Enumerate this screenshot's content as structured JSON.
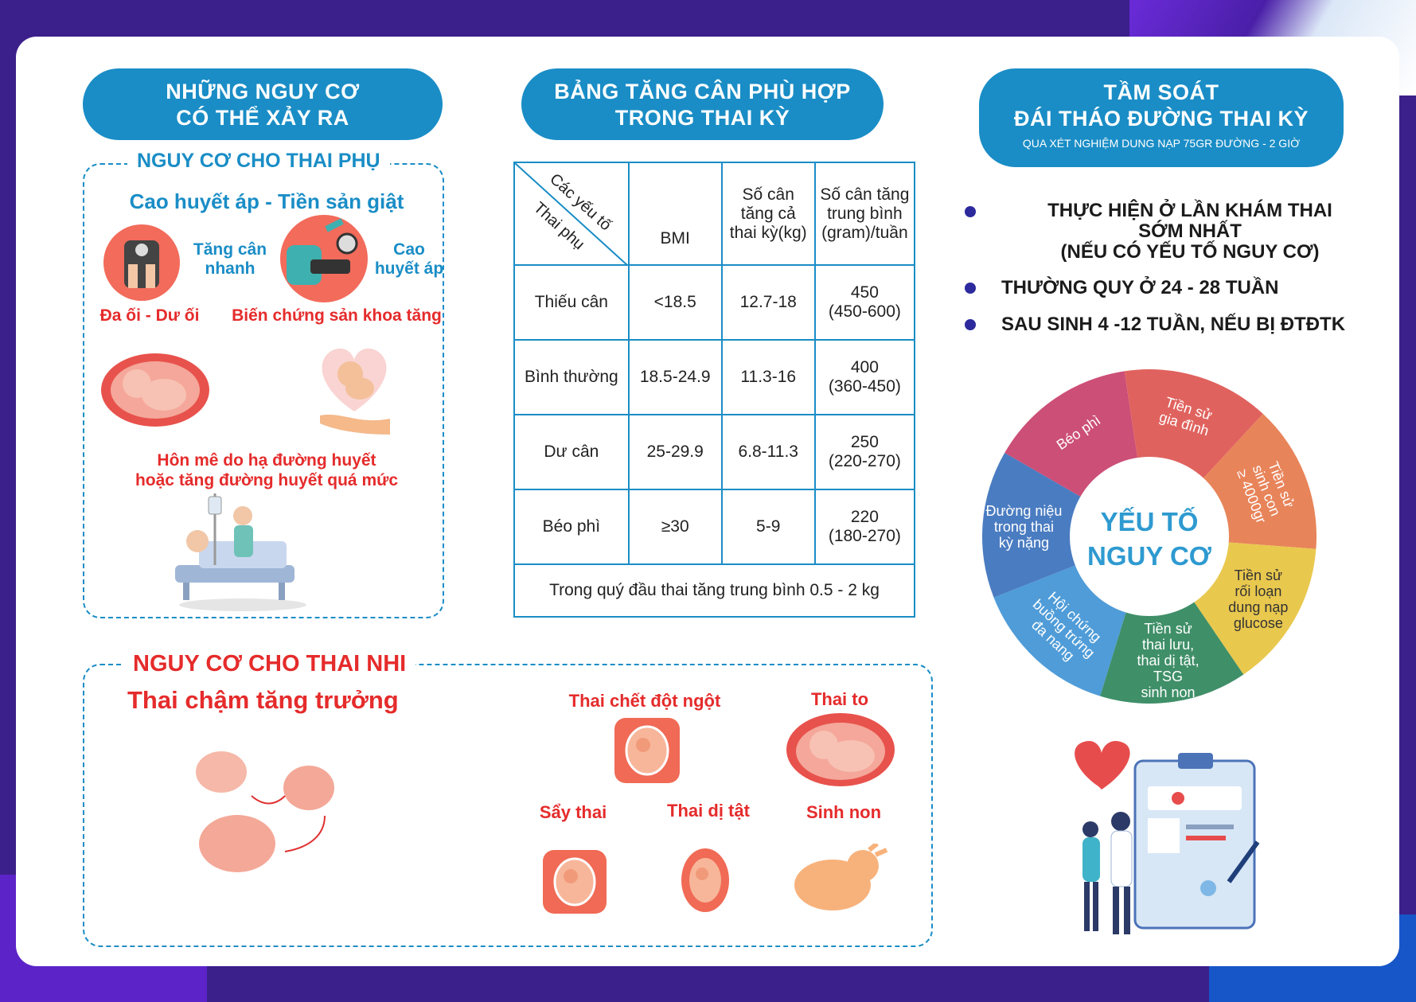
{
  "left": {
    "header": [
      "NHỮNG NGUY CƠ",
      "CÓ THỂ XẢY RA"
    ],
    "mother_title": "NGUY CƠ CHO THAI PHỤ",
    "subtitle": "Cao huyết áp - Tiền sản giật",
    "rapid_gain": [
      "Tăng cân",
      "nhanh"
    ],
    "high_bp": [
      "Cao",
      "huyết áp"
    ],
    "amniotic": "Đa ối - Dư ối",
    "complication": "Biến chứng sản khoa tăng",
    "coma": [
      "Hôn mê do hạ đường huyết",
      "hoặc tăng đường huyết quá mức"
    ]
  },
  "middle": {
    "header": [
      "BẢNG TĂNG CÂN PHÙ HỢP",
      "TRONG THAI KỲ"
    ],
    "table": {
      "diag_top": "Các yếu tố",
      "diag_bottom": "Thai phụ",
      "col_bmi": "BMI",
      "col_total": "Số cân tăng cả thai kỳ(kg)",
      "col_weekly": "Số cân tăng trung bình (gram)/tuần",
      "rows": [
        {
          "label": "Thiếu cân",
          "bmi": "<18.5",
          "total": "12.7-18",
          "weekly": [
            "450",
            "(450-600)"
          ]
        },
        {
          "label": "Bình thường",
          "bmi": "18.5-24.9",
          "total": "11.3-16",
          "weekly": [
            "400",
            "(360-450)"
          ]
        },
        {
          "label": "Dư cân",
          "bmi": "25-29.9",
          "total": "6.8-11.3",
          "weekly": [
            "250",
            "(220-270)"
          ]
        },
        {
          "label": "Béo phì",
          "bmi": "≥30",
          "total": "5-9",
          "weekly": [
            "220",
            "(180-270)"
          ]
        }
      ],
      "footer": "Trong quý đầu thai tăng trung bình 0.5 - 2 kg"
    }
  },
  "right": {
    "header": [
      "TẦM SOÁT",
      "ĐÁI THÁO ĐƯỜNG THAI KỲ"
    ],
    "header_sub": "QUA XÉT NGHIỆM DUNG NẠP 75GR ĐƯỜNG -  2 GIỜ",
    "bullets": [
      [
        "THỰC HIỆN Ở LẦN KHÁM THAI",
        "SỚM NHẤT",
        "(NẾU CÓ YẾU TỐ NGUY CƠ)"
      ],
      [
        "THƯỜNG QUY Ở 24 - 28 TUẦN"
      ],
      [
        "SAU SINH 4 -12 TUẦN, NẾU BỊ ĐTĐTK"
      ]
    ],
    "wheel": {
      "center": [
        "YẾU TỐ",
        "NGUY CƠ"
      ],
      "segments": [
        {
          "label": "Béo phì",
          "color": "#cc4f77"
        },
        {
          "label": "Tiền sử gia đình",
          "color": "#e0625e"
        },
        {
          "label": "Tiền sử sinh con ≥ 4000gr",
          "color": "#e8845a"
        },
        {
          "label": "Tiền sử rối loạn dung nạp glucose",
          "color": "#e9c84e"
        },
        {
          "label": "Tiền sử thai lưu, thai dị tật, TSG sinh non",
          "color": "#3f8f68"
        },
        {
          "label": "Hội chứng buồng trứng đa nang",
          "color": "#4f9cd8"
        },
        {
          "label": "Đường niệu trong thai kỳ nặng",
          "color": "#4a7cc1"
        }
      ]
    }
  },
  "fetus": {
    "title": "NGUY CƠ CHO THAI NHI",
    "growth": "Thai chậm tăng trưởng",
    "sudden_death": "Thai chết đột ngột",
    "large": "Thai to",
    "miscarriage": "Sẩy thai",
    "malformation": "Thai dị tật",
    "preterm": "Sinh non"
  }
}
